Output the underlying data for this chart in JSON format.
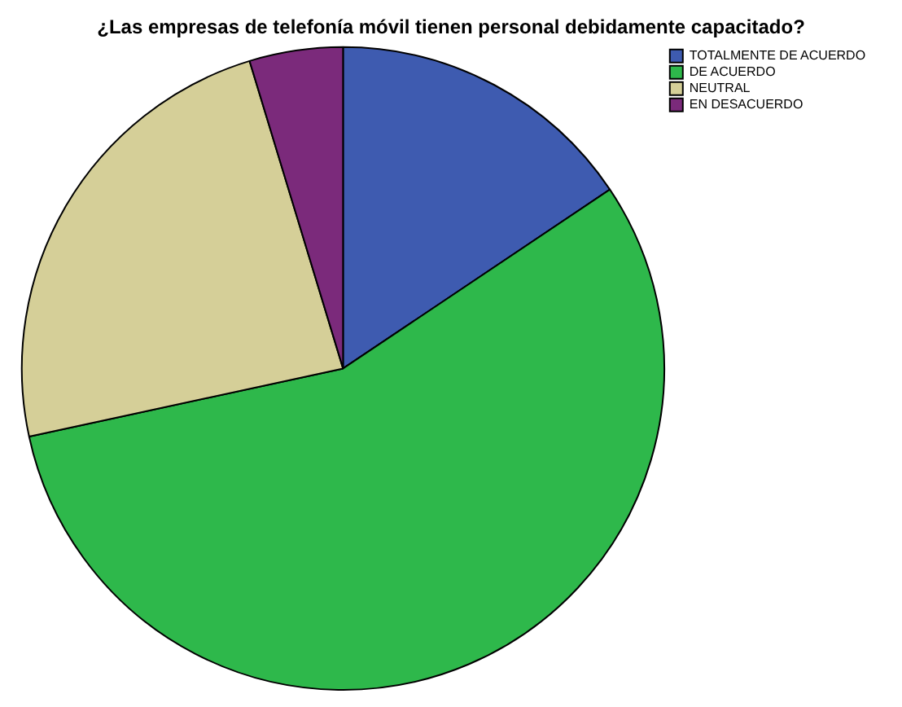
{
  "chart_data": {
    "type": "pie",
    "title": "¿Las empresas de telefonía móvil tienen personal debidamente capacitado?",
    "categories": [
      "TOTALMENTE DE ACUERDO",
      "DE ACUERDO",
      "NEUTRAL",
      "EN DESACUERDO"
    ],
    "values": [
      15.6,
      56.0,
      23.7,
      4.7
    ],
    "colors": [
      "#3e5bb0",
      "#2eb84b",
      "#d5cf98",
      "#7b2a7b"
    ],
    "legend": "top right"
  }
}
